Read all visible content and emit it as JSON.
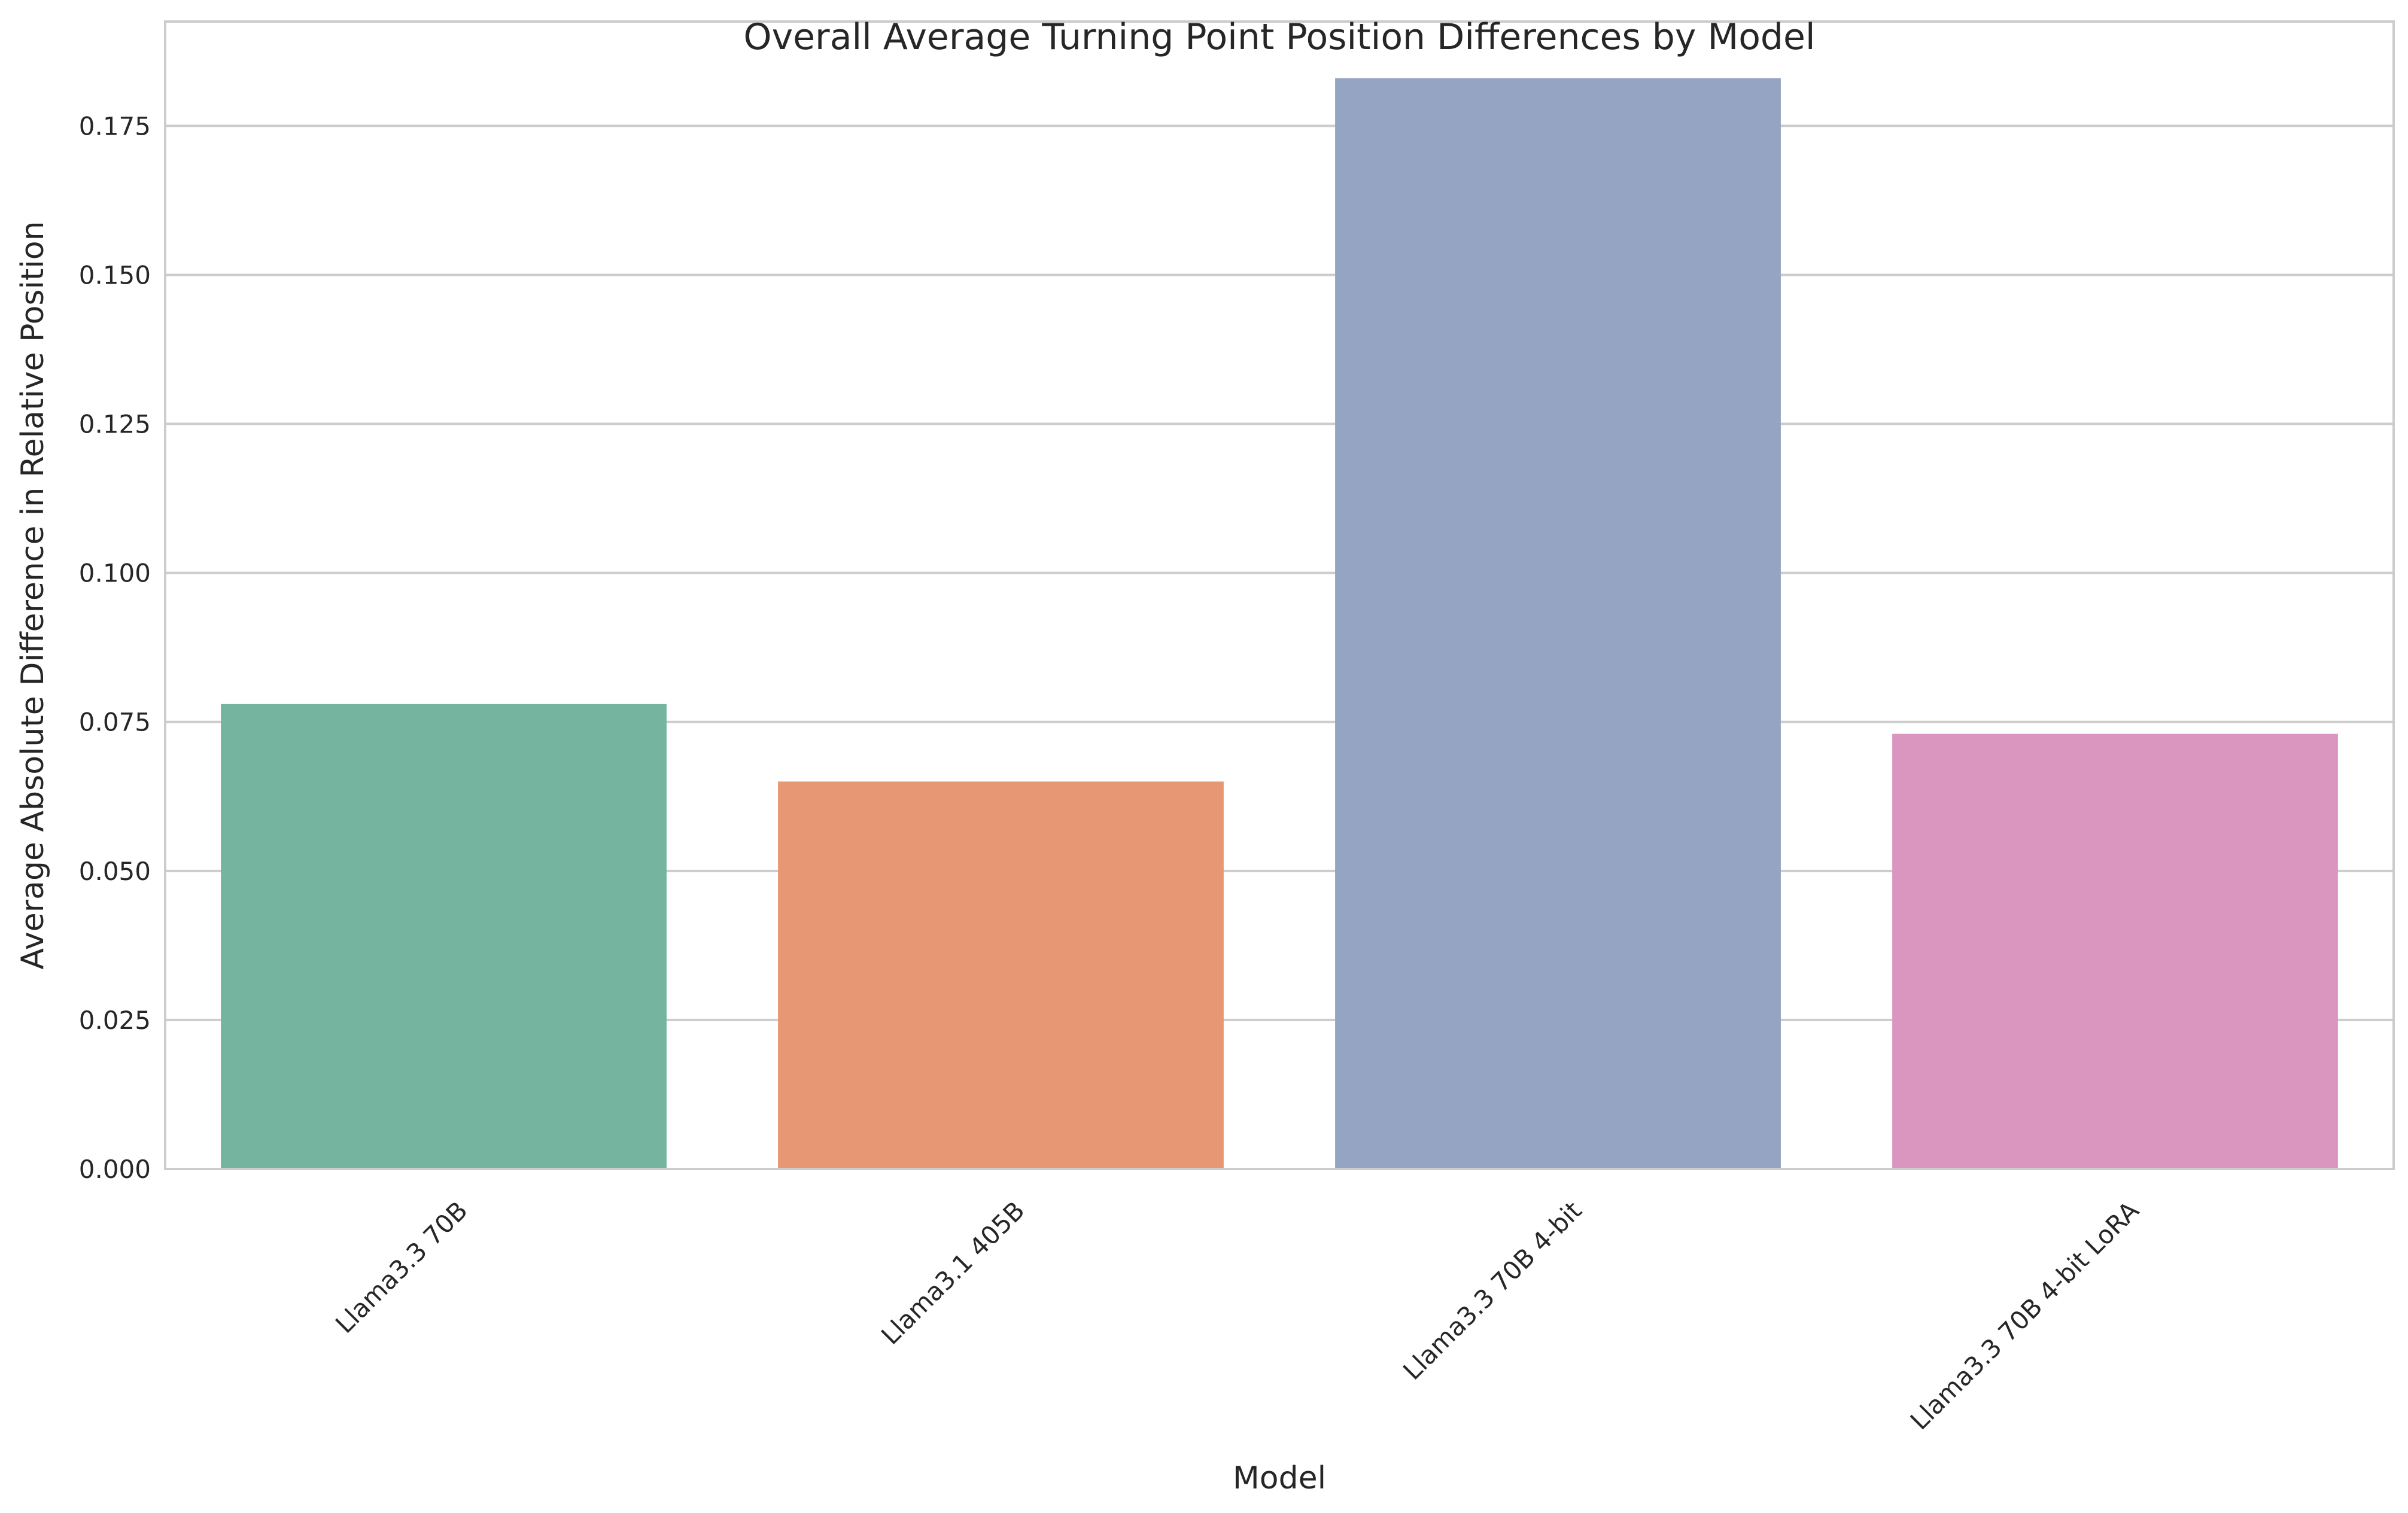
{
  "chart_data": {
    "type": "bar",
    "title": "Overall Average Turning Point Position Differences by Model",
    "xlabel": "Model",
    "ylabel": "Average Absolute Difference in Relative Position",
    "categories": [
      "Llama3.3 70B",
      "Llama3.1 405B",
      "Llama3.3 70B 4-bit",
      "Llama3.3 70B 4-bit LoRA"
    ],
    "values": [
      0.078,
      0.065,
      0.183,
      0.073
    ],
    "colors": [
      "#75b5a0",
      "#e89775",
      "#95a4c3",
      "#db96c0"
    ],
    "ylim": [
      0,
      0.1925
    ],
    "yticks": [
      0.0,
      0.025,
      0.05,
      0.075,
      0.1,
      0.125,
      0.15,
      0.175
    ],
    "ytick_labels": [
      "0.000",
      "0.025",
      "0.050",
      "0.075",
      "0.100",
      "0.125",
      "0.150",
      "0.175"
    ],
    "grid": "horizontal",
    "legend": "none"
  }
}
